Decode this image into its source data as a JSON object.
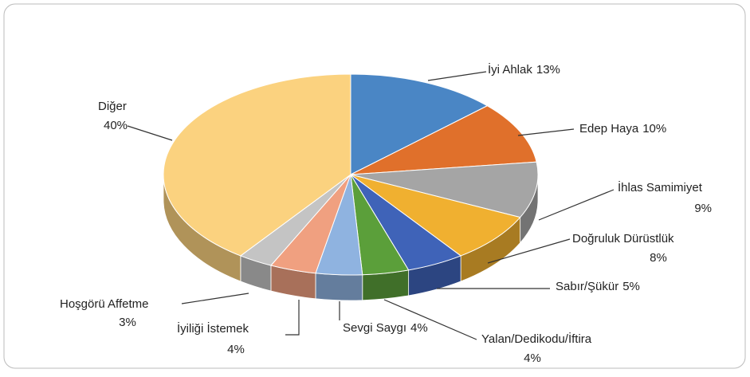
{
  "chart_data": {
    "type": "pie3d",
    "categories": [
      "İyi Ahlak",
      "Edep Haya",
      "İhlas Samimiyet",
      "Doğruluk Dürüstlük",
      "Sabır/Şükür",
      "Yalan/Dedikodu/İftira",
      "Sevgi Saygı",
      "İyiliği İstemek",
      "Hoşgörü Affetme",
      "Diğer"
    ],
    "values": [
      13,
      10,
      9,
      8,
      5,
      4,
      4,
      4,
      3,
      40
    ],
    "value_labels": [
      "13%",
      "10%",
      "9%",
      "8%",
      "5%",
      "4%",
      "4%",
      "4%",
      "3%",
      "40%"
    ],
    "colors": [
      "#4a86c5",
      "#e0702b",
      "#a5a5a5",
      "#f0b030",
      "#3f63b8",
      "#5b9f3a",
      "#8fb3e0",
      "#f0a080",
      "#c4c4c4",
      "#fbd27f"
    ]
  }
}
